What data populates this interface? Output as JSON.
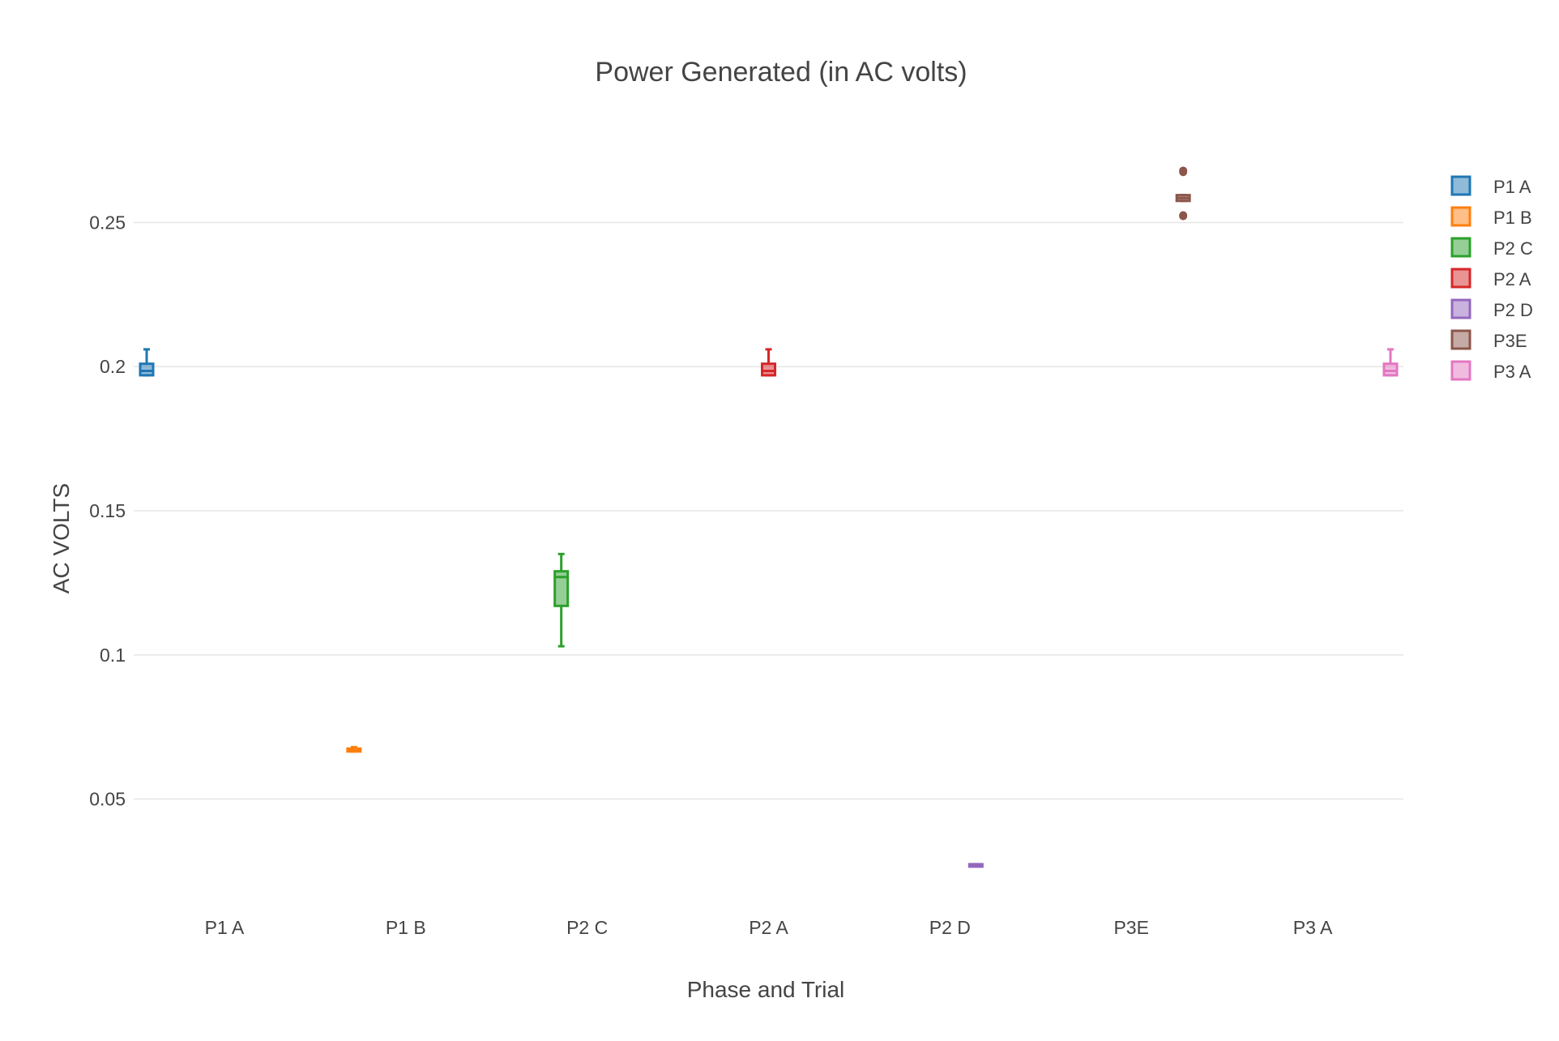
{
  "chart_data": {
    "type": "box",
    "title": "Power Generated (in AC volts)",
    "xlabel": "Phase and Trial",
    "ylabel": "AC VOLTS",
    "categories": [
      "P1 A",
      "P1 B",
      "P2 C",
      "P2 A",
      "P2 D",
      "P3E",
      "P3 A"
    ],
    "ylim": [
      0.015,
      0.285
    ],
    "yticks": [
      0.05,
      0.1,
      0.15,
      0.2,
      0.25
    ],
    "ytick_labels": [
      "0.05",
      "0.1",
      "0.15",
      "0.2",
      "0.25"
    ],
    "grid": true,
    "legend_position": "top-right",
    "series": [
      {
        "name": "P1 A",
        "color": "#1f77b4",
        "min": 0.197,
        "q1": 0.197,
        "median": 0.1985,
        "q3": 0.201,
        "max": 0.206,
        "outliers": []
      },
      {
        "name": "P1 B",
        "color": "#ff7f0e",
        "min": 0.0665,
        "q1": 0.0665,
        "median": 0.067,
        "q3": 0.0675,
        "max": 0.068,
        "outliers": []
      },
      {
        "name": "P2 C",
        "color": "#2ca02c",
        "min": 0.103,
        "q1": 0.117,
        "median": 0.127,
        "q3": 0.129,
        "max": 0.135,
        "outliers": []
      },
      {
        "name": "P2 A",
        "color": "#d62728",
        "min": 0.197,
        "q1": 0.197,
        "median": 0.1985,
        "q3": 0.201,
        "max": 0.206,
        "outliers": []
      },
      {
        "name": "P2 D",
        "color": "#9467bd",
        "min": 0.0268,
        "q1": 0.0268,
        "median": 0.027,
        "q3": 0.0274,
        "max": 0.0274,
        "outliers": []
      },
      {
        "name": "P3E",
        "color": "#8c564b",
        "min": 0.2575,
        "q1": 0.2575,
        "median": 0.2585,
        "q3": 0.2595,
        "max": 0.2595,
        "outliers": [
          0.2675,
          0.268,
          0.2525,
          0.2522
        ]
      },
      {
        "name": "P3 A",
        "color": "#e377c2",
        "min": 0.197,
        "q1": 0.197,
        "median": 0.1985,
        "q3": 0.201,
        "max": 0.206,
        "outliers": []
      }
    ]
  }
}
